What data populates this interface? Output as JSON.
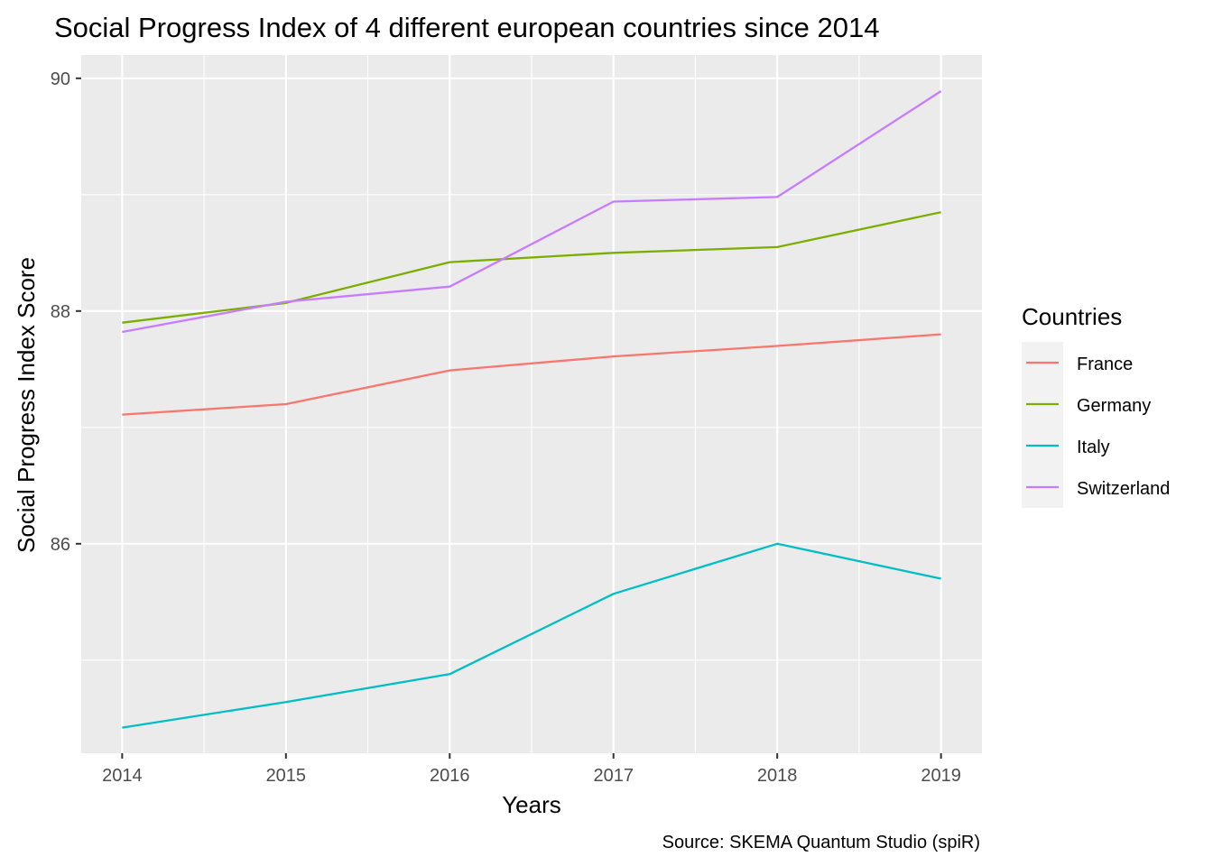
{
  "chart_data": {
    "type": "line",
    "title": "Social Progress Index of 4 different european countries since 2014",
    "xlabel": "Years",
    "ylabel": "Social Progress Index Score",
    "caption": "Source: SKEMA Quantum Studio (spiR)",
    "x": [
      2014,
      2015,
      2016,
      2017,
      2018,
      2019
    ],
    "x_tick_labels": [
      "2014",
      "2015",
      "2016",
      "2017",
      "2018",
      "2019"
    ],
    "y_ticks": [
      86,
      88,
      90
    ],
    "y_tick_labels": [
      "86",
      "88",
      "90"
    ],
    "xlim": [
      2013.75,
      2019.25
    ],
    "ylim": [
      84.2,
      90.2
    ],
    "grid": true,
    "background": "#ebebeb",
    "legend": {
      "title": "Countries",
      "placement": "right",
      "labels": [
        "France",
        "Germany",
        "Italy",
        "Switzerland"
      ]
    },
    "series": [
      {
        "name": "France",
        "color": "#f8766d",
        "values": [
          87.11,
          87.2,
          87.49,
          87.61,
          87.7,
          87.8
        ]
      },
      {
        "name": "Germany",
        "color": "#7cae00",
        "values": [
          87.9,
          88.07,
          88.42,
          88.5,
          88.55,
          88.85
        ]
      },
      {
        "name": "Italy",
        "color": "#00bfc4",
        "values": [
          84.42,
          84.64,
          84.88,
          85.57,
          86.0,
          85.7
        ]
      },
      {
        "name": "Switzerland",
        "color": "#c77cff",
        "values": [
          87.82,
          88.08,
          88.21,
          88.94,
          88.98,
          89.89
        ]
      }
    ]
  }
}
